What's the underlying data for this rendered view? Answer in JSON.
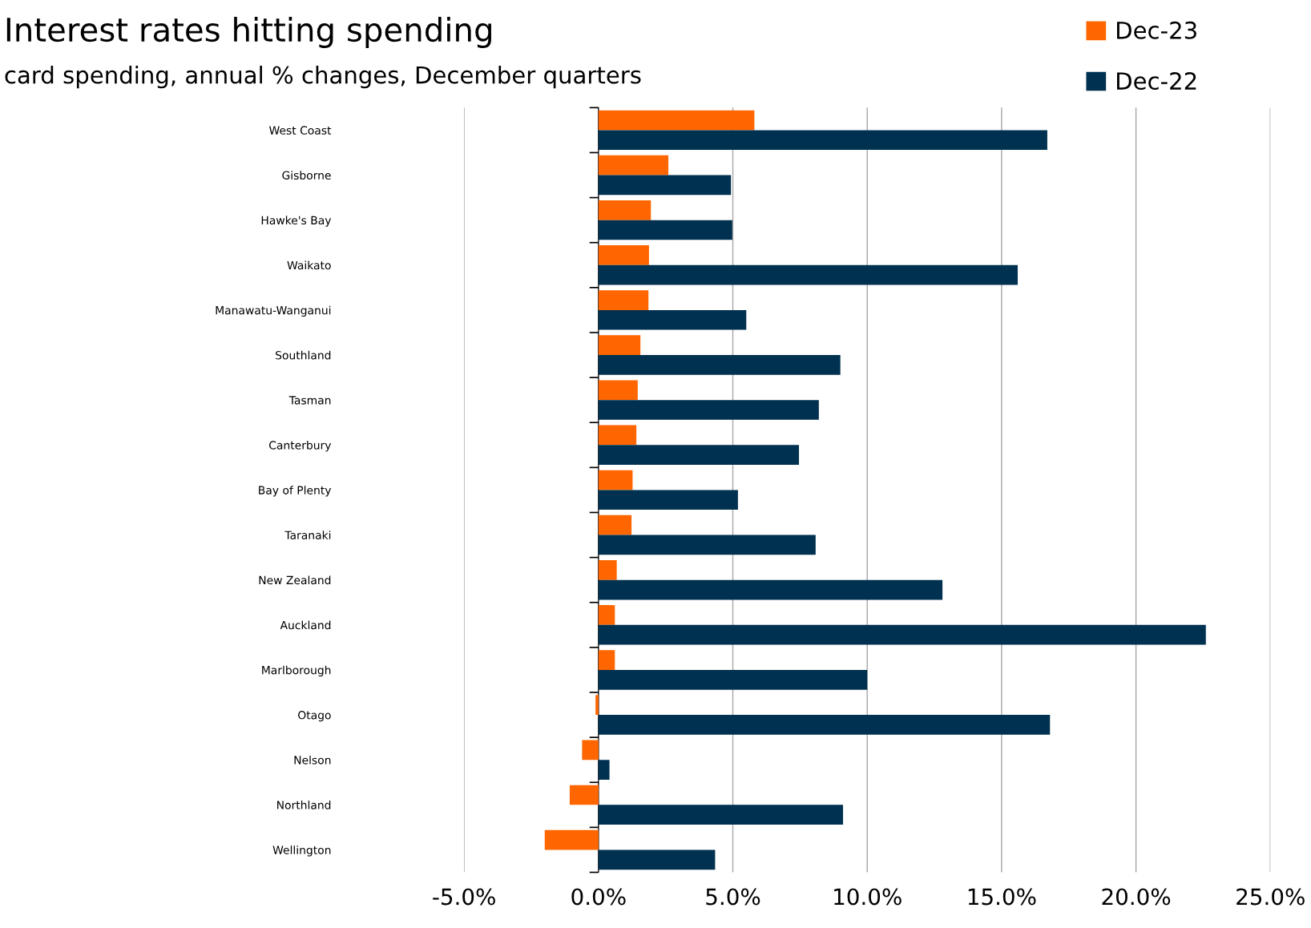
{
  "chart_data": {
    "type": "bar",
    "orientation": "horizontal",
    "title": "Interest rates hitting spending",
    "subtitle": "card spending, annual % changes, December quarters",
    "categories": [
      "West Coast",
      "Gisborne",
      "Hawke's Bay",
      "Waikato",
      "Manawatu-Wanganui",
      "Southland",
      "Tasman",
      "Canterbury",
      "Bay of Plenty",
      "Taranaki",
      "New Zealand",
      "Auckland",
      "Marlborough",
      "Otago",
      "Nelson",
      "Northland",
      "Wellington"
    ],
    "series": [
      {
        "name": "Dec-23",
        "color": "#ff6600",
        "values": [
          5.8,
          2.6,
          1.95,
          1.88,
          1.86,
          1.56,
          1.46,
          1.41,
          1.27,
          1.23,
          0.68,
          0.61,
          0.61,
          -0.11,
          -0.61,
          -1.07,
          -2.0
        ]
      },
      {
        "name": "Dec-22",
        "color": "#003150",
        "values": [
          16.7,
          4.93,
          4.98,
          15.6,
          5.5,
          9.0,
          8.2,
          7.46,
          5.19,
          8.08,
          12.8,
          22.6,
          10.0,
          16.8,
          0.41,
          9.1,
          4.34
        ]
      }
    ],
    "xlim": [
      -5,
      25
    ],
    "xticks": [
      {
        "value": -5,
        "label": "-5.0%"
      },
      {
        "value": 0,
        "label": "0.0%"
      },
      {
        "value": 5,
        "label": "5.0%"
      },
      {
        "value": 10,
        "label": "10.0%"
      },
      {
        "value": 15,
        "label": "15.0%"
      },
      {
        "value": 20,
        "label": "20.0%"
      },
      {
        "value": 25,
        "label": "25.0%"
      }
    ],
    "grid": "x",
    "legend": "top right"
  }
}
